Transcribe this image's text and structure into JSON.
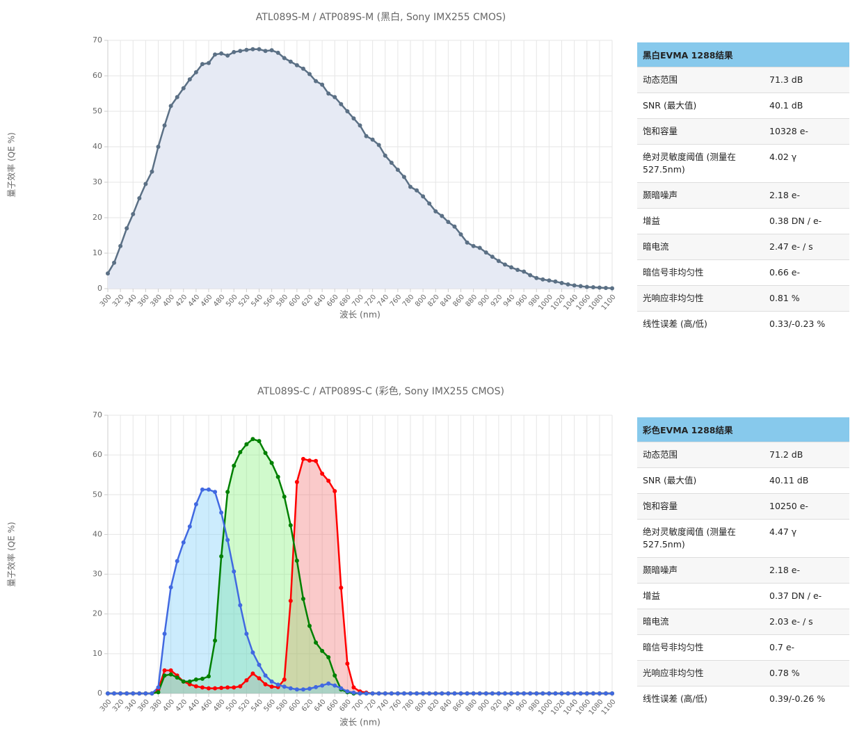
{
  "chart_data": [
    {
      "type": "line",
      "title": "ATL089S-M / ATP089S-M (黑白, Sony IMX255 CMOS)",
      "x_label": "波长 (nm)",
      "y_label": "量子效率 (QE %)",
      "x": [
        300,
        310,
        320,
        330,
        340,
        350,
        360,
        370,
        380,
        390,
        400,
        410,
        420,
        430,
        440,
        450,
        460,
        470,
        480,
        490,
        500,
        510,
        520,
        530,
        540,
        550,
        560,
        570,
        580,
        590,
        600,
        610,
        620,
        630,
        640,
        650,
        660,
        670,
        680,
        690,
        700,
        710,
        720,
        730,
        740,
        750,
        760,
        770,
        780,
        790,
        800,
        810,
        820,
        830,
        840,
        850,
        860,
        870,
        880,
        890,
        900,
        910,
        920,
        930,
        940,
        950,
        960,
        970,
        980,
        990,
        1000,
        1010,
        1020,
        1030,
        1040,
        1050,
        1060,
        1070,
        1080,
        1090,
        1100
      ],
      "series": [
        {
          "color": "#5b7085",
          "fill": "#e6eaf4",
          "values": [
            4.3,
            7.3,
            12,
            17,
            21,
            25.5,
            29.5,
            33,
            40,
            46,
            51.5,
            54,
            56.5,
            59,
            61,
            63.3,
            63.6,
            66,
            66.3,
            65.7,
            66.7,
            67,
            67.3,
            67.5,
            67.5,
            67,
            67.2,
            66.5,
            65,
            64,
            63,
            62,
            60.5,
            58.5,
            57.5,
            55,
            54,
            52,
            50,
            48,
            46,
            43,
            42,
            40.5,
            37.5,
            35.5,
            33.5,
            31.5,
            28.7,
            27.7,
            26,
            24,
            21.8,
            20.5,
            18.8,
            17.5,
            15.3,
            13,
            12,
            11.5,
            10.2,
            9,
            7.8,
            6.8,
            6,
            5.3,
            4.8,
            3.8,
            3,
            2.6,
            2.3,
            2,
            1.6,
            1.2,
            0.9,
            0.7,
            0.5,
            0.4,
            0.3,
            0.2,
            0.1
          ]
        }
      ],
      "xlim": [
        300,
        1100
      ],
      "ylim": [
        0,
        70
      ],
      "xticks": [
        300,
        320,
        340,
        360,
        380,
        400,
        420,
        440,
        460,
        480,
        500,
        520,
        540,
        560,
        580,
        600,
        620,
        640,
        660,
        680,
        700,
        720,
        740,
        760,
        780,
        800,
        820,
        840,
        860,
        880,
        900,
        920,
        940,
        960,
        980,
        1000,
        1020,
        1040,
        1060,
        1080,
        1100
      ],
      "yticks": [
        0,
        10,
        20,
        30,
        40,
        50,
        60,
        70
      ],
      "grid": true
    },
    {
      "type": "line",
      "title": "ATL089S-C / ATP089S-C (彩色, Sony IMX255 CMOS)",
      "x_label": "波长 (nm)",
      "y_label": "量子效率 (QE %)",
      "x": [
        300,
        310,
        320,
        330,
        340,
        350,
        360,
        370,
        380,
        390,
        400,
        410,
        420,
        430,
        440,
        450,
        460,
        470,
        480,
        490,
        500,
        510,
        520,
        530,
        540,
        550,
        560,
        570,
        580,
        590,
        600,
        610,
        620,
        630,
        640,
        650,
        660,
        670,
        680,
        690,
        700,
        710,
        720,
        730,
        740,
        750,
        760,
        770,
        780,
        790,
        800,
        810,
        820,
        830,
        840,
        850,
        860,
        870,
        880,
        890,
        900,
        910,
        920,
        930,
        940,
        950,
        960,
        970,
        980,
        990,
        1000,
        1010,
        1020,
        1030,
        1040,
        1050,
        1060,
        1070,
        1080,
        1090,
        1100
      ],
      "series": [
        {
          "color": "#ff0000",
          "fill": "rgba(240,80,80,0.3)",
          "values": [
            0,
            0,
            0,
            0,
            0,
            0,
            0,
            0,
            1,
            5.8,
            5.8,
            4.5,
            3,
            2.3,
            1.8,
            1.5,
            1.3,
            1.3,
            1.4,
            1.5,
            1.5,
            1.8,
            3.3,
            5,
            3.8,
            2.3,
            1.7,
            1.6,
            3.5,
            23.3,
            53.2,
            59,
            58.6,
            58.5,
            55.3,
            53.5,
            50.9,
            26.6,
            7.5,
            1.5,
            0.5,
            0.2,
            0,
            0,
            0,
            0,
            0,
            0,
            0,
            0,
            0,
            0,
            0,
            0,
            0,
            0,
            0,
            0,
            0,
            0,
            0,
            0,
            0,
            0,
            0,
            0,
            0,
            0,
            0,
            0,
            0,
            0,
            0,
            0,
            0,
            0,
            0,
            0,
            0,
            0,
            0
          ]
        },
        {
          "color": "#008000",
          "fill": "rgba(120,240,110,0.35)",
          "values": [
            0,
            0,
            0,
            0,
            0,
            0,
            0,
            0,
            0.3,
            4.5,
            4.8,
            4,
            3,
            3,
            3.5,
            3.7,
            4.3,
            13.3,
            34.5,
            50.7,
            57.3,
            60.7,
            62.7,
            64,
            63.5,
            60.5,
            58,
            54.5,
            49.5,
            42.3,
            33.4,
            23.8,
            17,
            12.8,
            10.7,
            9.1,
            4.5,
            1,
            0.3,
            0,
            0,
            0,
            0,
            0,
            0,
            0,
            0,
            0,
            0,
            0,
            0,
            0,
            0,
            0,
            0,
            0,
            0,
            0,
            0,
            0,
            0,
            0,
            0,
            0,
            0,
            0,
            0,
            0,
            0,
            0,
            0,
            0,
            0,
            0,
            0,
            0,
            0,
            0,
            0,
            0,
            0
          ]
        },
        {
          "color": "#4169e1",
          "fill": "rgba(110,200,250,0.35)",
          "values": [
            0,
            0,
            0,
            0,
            0,
            0,
            0,
            0,
            1.5,
            15,
            26.7,
            33.3,
            38,
            42,
            47.6,
            51.3,
            51.3,
            50.7,
            45.5,
            38.6,
            30.7,
            22.2,
            15,
            10.3,
            7.2,
            4.5,
            3,
            2.2,
            1.7,
            1.3,
            1,
            1,
            1.2,
            1.6,
            2,
            2.5,
            2,
            1.3,
            0.5,
            0.2,
            0,
            0,
            0,
            0,
            0,
            0,
            0,
            0,
            0,
            0,
            0,
            0,
            0,
            0,
            0,
            0,
            0,
            0,
            0,
            0,
            0,
            0,
            0,
            0,
            0,
            0,
            0,
            0,
            0,
            0,
            0,
            0,
            0,
            0,
            0,
            0,
            0,
            0,
            0,
            0,
            0
          ]
        }
      ],
      "xlim": [
        300,
        1100
      ],
      "ylim": [
        0,
        70
      ],
      "xticks": [
        300,
        320,
        340,
        360,
        380,
        400,
        420,
        440,
        460,
        480,
        500,
        520,
        540,
        560,
        580,
        600,
        620,
        640,
        660,
        680,
        700,
        720,
        740,
        760,
        780,
        800,
        820,
        840,
        860,
        880,
        900,
        920,
        940,
        960,
        980,
        1000,
        1020,
        1040,
        1060,
        1080,
        1100
      ],
      "yticks": [
        0,
        10,
        20,
        30,
        40,
        50,
        60,
        70
      ],
      "grid": true
    }
  ],
  "tables": [
    {
      "title": "黑白EVMA 1288结果",
      "rows": [
        [
          "动态范围",
          "71.3 dB"
        ],
        [
          "SNR (最大值)",
          "40.1 dB"
        ],
        [
          "饱和容量",
          "10328 e-"
        ],
        [
          "绝对灵敏度阈值 (测量在527.5nm)",
          "4.02 γ"
        ],
        [
          "颞暗噪声",
          "2.18 e-"
        ],
        [
          "增益",
          "0.38 DN / e-"
        ],
        [
          "暗电流",
          "2.47 e- / s"
        ],
        [
          "暗信号非均匀性",
          "0.66 e-"
        ],
        [
          "光响应非均匀性",
          "0.81 %"
        ],
        [
          "线性误差 (高/低)",
          "0.33/-0.23 %"
        ]
      ]
    },
    {
      "title": "彩色EVMA 1288结果",
      "rows": [
        [
          "动态范围",
          "71.2 dB"
        ],
        [
          "SNR (最大值)",
          "40.11 dB"
        ],
        [
          "饱和容量",
          "10250 e-"
        ],
        [
          "绝对灵敏度阈值 (测量在527.5nm)",
          "4.47 γ"
        ],
        [
          "颞暗噪声",
          "2.18 e-"
        ],
        [
          "增益",
          "0.37 DN / e-"
        ],
        [
          "暗电流",
          "2.03 e- / s"
        ],
        [
          "暗信号非均匀性",
          "0.7 e-"
        ],
        [
          "光响应非均匀性",
          "0.78 %"
        ],
        [
          "线性误差 (高/低)",
          "0.39/-0.26 %"
        ]
      ]
    }
  ]
}
